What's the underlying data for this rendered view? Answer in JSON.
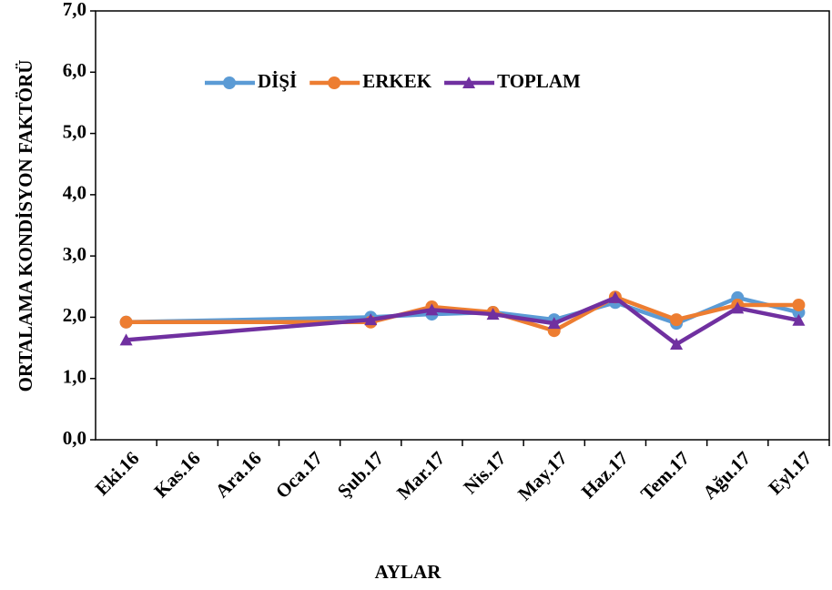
{
  "chart_data": {
    "type": "line",
    "y_label": "ORTALAMA KONDİSYON FAKTÖRÜ",
    "x_label": "AYLAR",
    "categories": [
      "Eki.16",
      "Kas.16",
      "Ara.16",
      "Oca.17",
      "Şub.17",
      "Mar.17",
      "Nis.17",
      "May.17",
      "Haz.17",
      "Tem.17",
      "Ağu.17",
      "Eyl.17"
    ],
    "series": [
      {
        "name": "DİŞİ",
        "color": "#5b9bd5",
        "marker": "circle",
        "values": [
          1.92,
          null,
          null,
          null,
          2.0,
          2.05,
          2.08,
          1.96,
          2.24,
          1.9,
          2.32,
          2.08
        ]
      },
      {
        "name": "ERKEK",
        "color": "#ed7d31",
        "marker": "circle",
        "values": [
          1.92,
          null,
          null,
          null,
          1.92,
          2.17,
          2.08,
          1.78,
          2.33,
          1.96,
          2.2,
          2.2
        ]
      },
      {
        "name": "TOPLAM",
        "color": "#7030a0",
        "marker": "triangle",
        "values": [
          1.63,
          null,
          null,
          null,
          1.96,
          2.12,
          2.05,
          1.9,
          2.32,
          1.56,
          2.15,
          1.95
        ]
      }
    ],
    "ylim": [
      0,
      7
    ],
    "yticks": [
      {
        "value": 0,
        "label": "0,0"
      },
      {
        "value": 1,
        "label": "1,0"
      },
      {
        "value": 2,
        "label": "2,0"
      },
      {
        "value": 3,
        "label": "3,0"
      },
      {
        "value": 4,
        "label": "4,0"
      },
      {
        "value": 5,
        "label": "5,0"
      },
      {
        "value": 6,
        "label": "6,0"
      },
      {
        "value": 7,
        "label": "7,0"
      }
    ],
    "span_gaps": true,
    "legend": "top"
  }
}
